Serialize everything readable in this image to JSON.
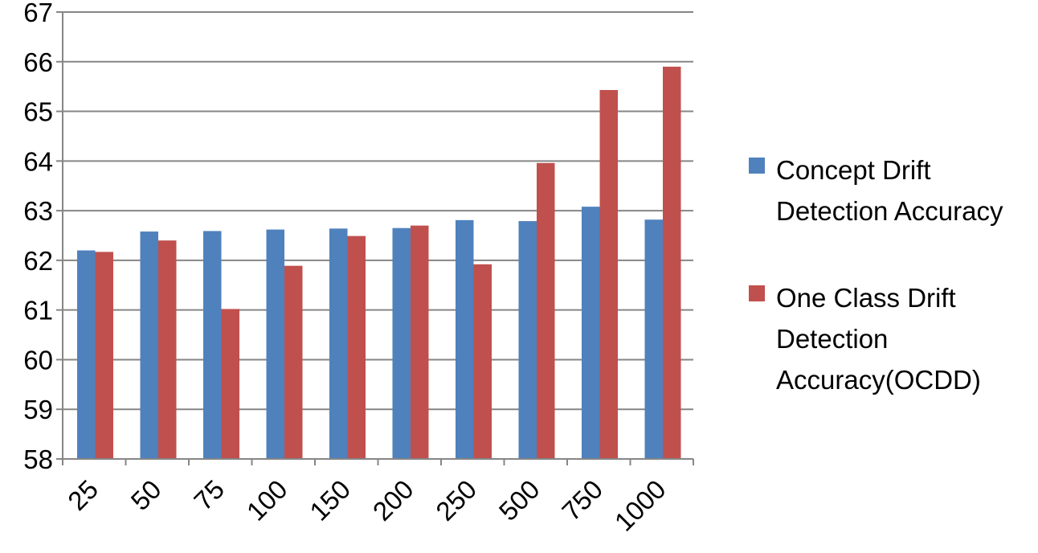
{
  "chart_data": {
    "type": "bar",
    "title": "",
    "xlabel": "",
    "ylabel": "",
    "ylim": [
      58,
      67
    ],
    "y_ticks": [
      58,
      59,
      60,
      61,
      62,
      63,
      64,
      65,
      66,
      67
    ],
    "grid": "horizontal",
    "legend_position": "right",
    "categories": [
      "25",
      "50",
      "75",
      "100",
      "150",
      "200",
      "250",
      "500",
      "750",
      "1000"
    ],
    "series": [
      {
        "name": "Concept Drift Detection Accuracy",
        "color": "#4f81bd",
        "values": [
          62.2,
          62.58,
          62.59,
          62.62,
          62.64,
          62.65,
          62.81,
          62.79,
          63.08,
          62.82
        ]
      },
      {
        "name": "One Class Drift Detection Accuracy(OCDD)",
        "color": "#c0504d",
        "values": [
          62.17,
          62.4,
          61.02,
          61.89,
          62.49,
          62.7,
          61.92,
          63.96,
          65.43,
          65.9
        ]
      }
    ]
  }
}
